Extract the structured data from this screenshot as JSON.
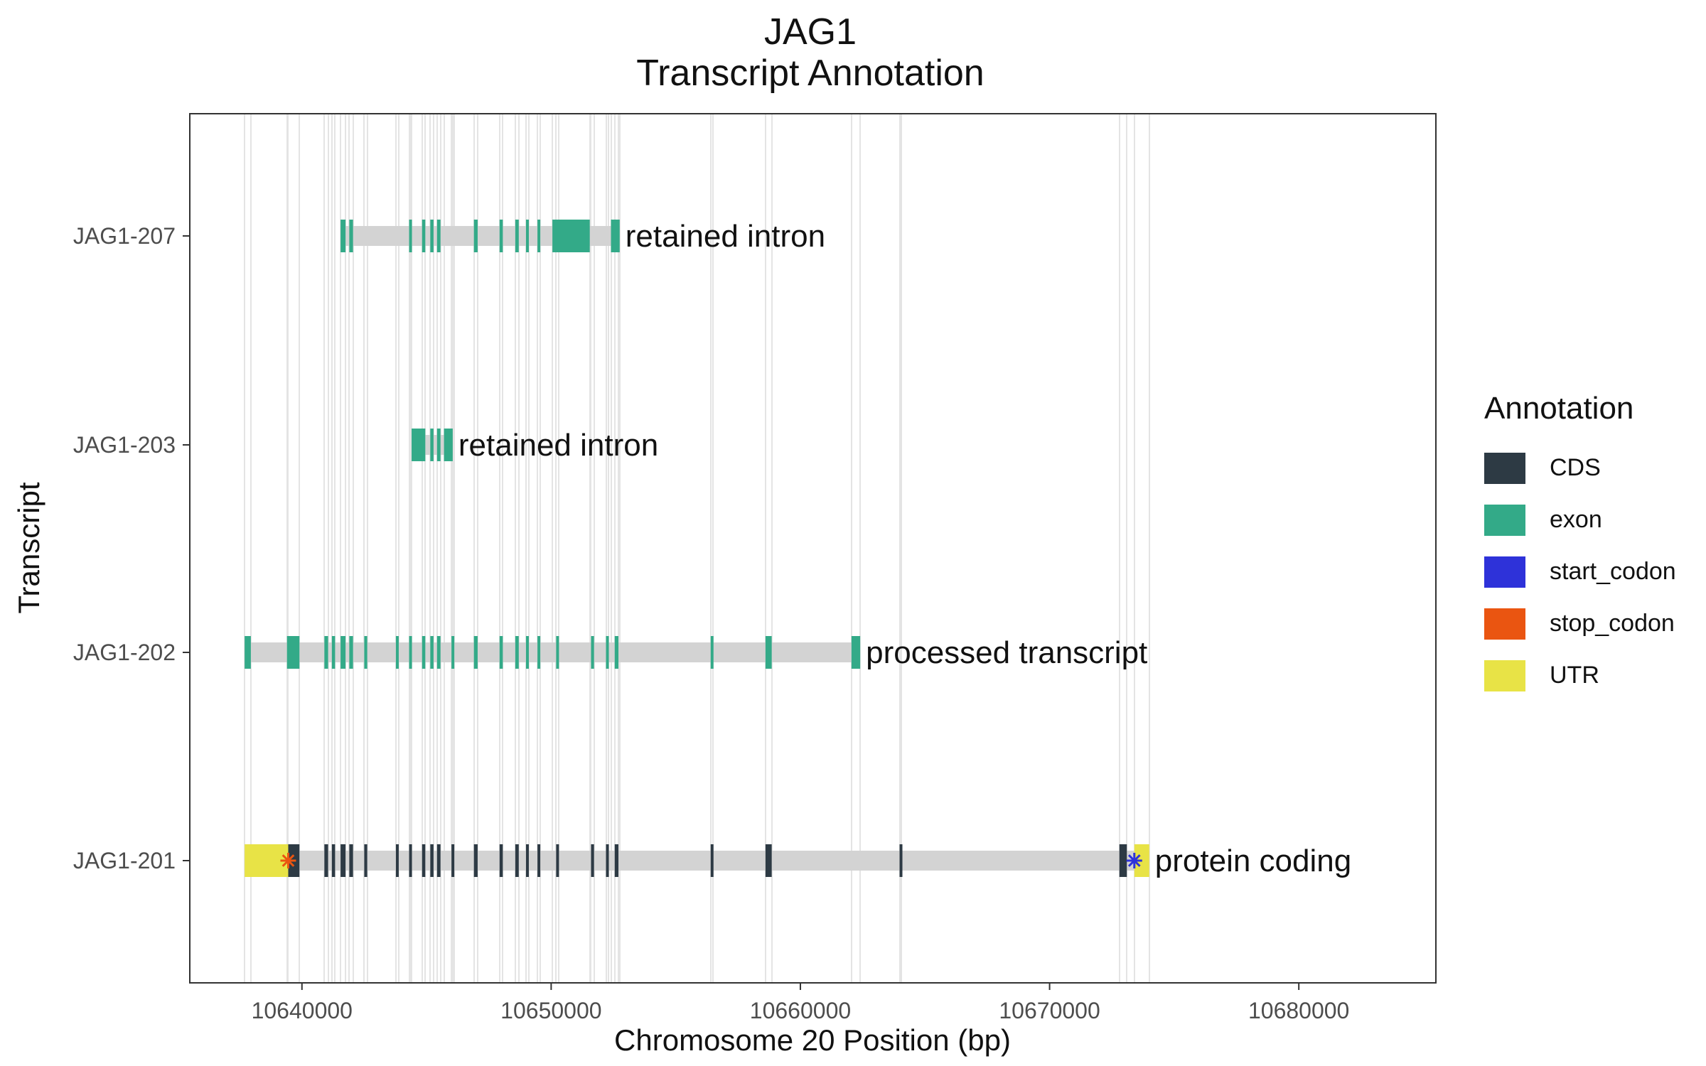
{
  "chart_data": {
    "type": "transcript-track",
    "title": "JAG1",
    "subtitle": "Transcript Annotation",
    "xlabel": "Chromosome 20 Position (bp)",
    "ylabel": "Transcript",
    "xlim": [
      10635500,
      10685500
    ],
    "xticks": [
      10640000,
      10650000,
      10660000,
      10670000,
      10680000
    ],
    "grid": "vertical lines at exon boundaries",
    "legend": {
      "title": "Annotation",
      "placement": "right",
      "items": [
        {
          "name": "CDS",
          "color": "#2d3a44"
        },
        {
          "name": "exon",
          "color": "#33aa88"
        },
        {
          "name": "start_codon",
          "color": "#2e32d9"
        },
        {
          "name": "stop_codon",
          "color": "#ea5511"
        },
        {
          "name": "UTR",
          "color": "#e8e346"
        }
      ]
    },
    "transcripts": [
      {
        "name": "JAG1-207",
        "biotype": "retained intron",
        "start": 10641550,
        "end": 10652750,
        "features": [
          {
            "type": "exon",
            "start": 10641550,
            "end": 10641750
          },
          {
            "type": "exon",
            "start": 10641900,
            "end": 10642050
          },
          {
            "type": "exon",
            "start": 10644300,
            "end": 10644380
          },
          {
            "type": "exon",
            "start": 10644820,
            "end": 10644950
          },
          {
            "type": "exon",
            "start": 10645150,
            "end": 10645280
          },
          {
            "type": "exon",
            "start": 10645420,
            "end": 10645560
          },
          {
            "type": "exon",
            "start": 10646900,
            "end": 10647050
          },
          {
            "type": "exon",
            "start": 10647930,
            "end": 10648060
          },
          {
            "type": "exon",
            "start": 10648560,
            "end": 10648700
          },
          {
            "type": "exon",
            "start": 10648990,
            "end": 10649100
          },
          {
            "type": "exon",
            "start": 10649450,
            "end": 10649560
          },
          {
            "type": "exon",
            "start": 10650050,
            "end": 10651550
          },
          {
            "type": "exon",
            "start": 10652400,
            "end": 10652750
          }
        ]
      },
      {
        "name": "JAG1-203",
        "biotype": "retained intron",
        "start": 10644400,
        "end": 10646050,
        "features": [
          {
            "type": "exon",
            "start": 10644400,
            "end": 10644950
          },
          {
            "type": "exon",
            "start": 10645150,
            "end": 10645280
          },
          {
            "type": "exon",
            "start": 10645420,
            "end": 10645560
          },
          {
            "type": "exon",
            "start": 10645700,
            "end": 10646050
          }
        ]
      },
      {
        "name": "JAG1-202",
        "biotype": "processed transcript",
        "start": 10637700,
        "end": 10662400,
        "features": [
          {
            "type": "exon",
            "start": 10637700,
            "end": 10637950
          },
          {
            "type": "exon",
            "start": 10639400,
            "end": 10639900
          },
          {
            "type": "exon",
            "start": 10640900,
            "end": 10641050
          },
          {
            "type": "exon",
            "start": 10641200,
            "end": 10641330
          },
          {
            "type": "exon",
            "start": 10641550,
            "end": 10641750
          },
          {
            "type": "exon",
            "start": 10641900,
            "end": 10642050
          },
          {
            "type": "exon",
            "start": 10642500,
            "end": 10642620
          },
          {
            "type": "exon",
            "start": 10643770,
            "end": 10643880
          },
          {
            "type": "exon",
            "start": 10644300,
            "end": 10644380
          },
          {
            "type": "exon",
            "start": 10644820,
            "end": 10644950
          },
          {
            "type": "exon",
            "start": 10645150,
            "end": 10645280
          },
          {
            "type": "exon",
            "start": 10645420,
            "end": 10645560
          },
          {
            "type": "exon",
            "start": 10646000,
            "end": 10646100
          },
          {
            "type": "exon",
            "start": 10646900,
            "end": 10647050
          },
          {
            "type": "exon",
            "start": 10647930,
            "end": 10648060
          },
          {
            "type": "exon",
            "start": 10648560,
            "end": 10648700
          },
          {
            "type": "exon",
            "start": 10648990,
            "end": 10649100
          },
          {
            "type": "exon",
            "start": 10649450,
            "end": 10649560
          },
          {
            "type": "exon",
            "start": 10650200,
            "end": 10650300
          },
          {
            "type": "exon",
            "start": 10651600,
            "end": 10651720
          },
          {
            "type": "exon",
            "start": 10652200,
            "end": 10652300
          },
          {
            "type": "exon",
            "start": 10652550,
            "end": 10652700
          },
          {
            "type": "exon",
            "start": 10656400,
            "end": 10656480
          },
          {
            "type": "exon",
            "start": 10658600,
            "end": 10658850
          },
          {
            "type": "exon",
            "start": 10662050,
            "end": 10662400
          }
        ]
      },
      {
        "name": "JAG1-201",
        "biotype": "protein coding",
        "start": 10637700,
        "end": 10674000,
        "features": [
          {
            "type": "UTR",
            "start": 10637700,
            "end": 10639450
          },
          {
            "type": "CDS",
            "start": 10639450,
            "end": 10639900
          },
          {
            "type": "CDS",
            "start": 10640900,
            "end": 10641050
          },
          {
            "type": "CDS",
            "start": 10641200,
            "end": 10641330
          },
          {
            "type": "CDS",
            "start": 10641550,
            "end": 10641750
          },
          {
            "type": "CDS",
            "start": 10641900,
            "end": 10642050
          },
          {
            "type": "CDS",
            "start": 10642500,
            "end": 10642620
          },
          {
            "type": "CDS",
            "start": 10643770,
            "end": 10643880
          },
          {
            "type": "CDS",
            "start": 10644300,
            "end": 10644380
          },
          {
            "type": "CDS",
            "start": 10644820,
            "end": 10644950
          },
          {
            "type": "CDS",
            "start": 10645150,
            "end": 10645280
          },
          {
            "type": "CDS",
            "start": 10645420,
            "end": 10645560
          },
          {
            "type": "CDS",
            "start": 10646000,
            "end": 10646100
          },
          {
            "type": "CDS",
            "start": 10646900,
            "end": 10647050
          },
          {
            "type": "CDS",
            "start": 10647930,
            "end": 10648060
          },
          {
            "type": "CDS",
            "start": 10648560,
            "end": 10648700
          },
          {
            "type": "CDS",
            "start": 10648990,
            "end": 10649100
          },
          {
            "type": "CDS",
            "start": 10649450,
            "end": 10649560
          },
          {
            "type": "CDS",
            "start": 10650200,
            "end": 10650300
          },
          {
            "type": "CDS",
            "start": 10651600,
            "end": 10651720
          },
          {
            "type": "CDS",
            "start": 10652200,
            "end": 10652300
          },
          {
            "type": "CDS",
            "start": 10652550,
            "end": 10652700
          },
          {
            "type": "CDS",
            "start": 10656400,
            "end": 10656480
          },
          {
            "type": "CDS",
            "start": 10658600,
            "end": 10658850
          },
          {
            "type": "CDS",
            "start": 10663980,
            "end": 10664060
          },
          {
            "type": "CDS",
            "start": 10672800,
            "end": 10673100
          },
          {
            "type": "UTR",
            "start": 10673400,
            "end": 10674000
          }
        ],
        "codons": [
          {
            "type": "stop_codon",
            "position": 10639450
          },
          {
            "type": "start_codon",
            "position": 10673400
          }
        ]
      }
    ]
  }
}
